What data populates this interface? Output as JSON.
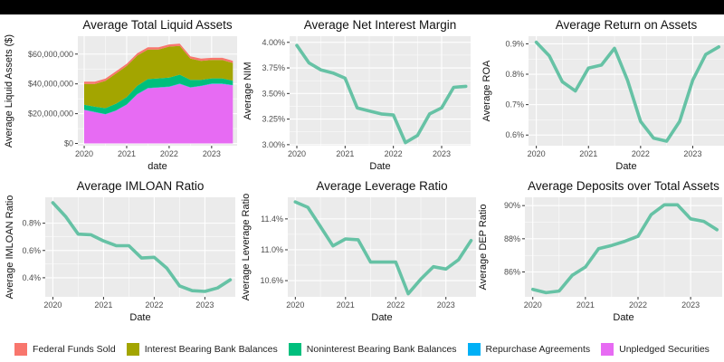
{
  "colors": {
    "panel_bg": "#ebebeb",
    "grid": "#ffffff",
    "line": "#66c2a5"
  },
  "chart_data": [
    {
      "type": "area",
      "title": "Average Total Liquid Assets",
      "xlabel": "date",
      "ylabel": "Average Liquid Assets ($)",
      "xlim": [
        2019.85,
        2023.6
      ],
      "ylim": [
        -1500000,
        72000000
      ],
      "x_ticks": [
        2020,
        2021,
        2022,
        2023
      ],
      "x_tick_labels": [
        "2020",
        "2021",
        "2022",
        "2023"
      ],
      "y_ticks": [
        0,
        20000000,
        40000000,
        60000000
      ],
      "y_tick_labels": [
        "$0",
        "$20,000,000",
        "$40,000,000",
        "$60,000,000"
      ],
      "x": [
        2020,
        2020.25,
        2020.5,
        2020.75,
        2021,
        2021.25,
        2021.5,
        2021.75,
        2022,
        2022.25,
        2022.5,
        2022.75,
        2023,
        2023.25,
        2023.5
      ],
      "series": [
        {
          "name": "Unpledged Securities",
          "color": "#e76bf3",
          "values": [
            22500000,
            21000000,
            19500000,
            22000000,
            26000000,
            33000000,
            37000000,
            37500000,
            38000000,
            40000000,
            37500000,
            38500000,
            40000000,
            40000000,
            39000000
          ]
        },
        {
          "name": "Repurchase Agreements",
          "color": "#00b0f6",
          "values": [
            200000,
            200000,
            200000,
            200000,
            200000,
            200000,
            200000,
            200000,
            200000,
            200000,
            200000,
            200000,
            200000,
            200000,
            200000
          ]
        },
        {
          "name": "Noninterest Bearing Bank Balances",
          "color": "#00bf7d",
          "values": [
            3300000,
            3500000,
            4000000,
            4500000,
            5000000,
            5500000,
            6000000,
            6000000,
            6000000,
            6000000,
            5000000,
            4000000,
            3500000,
            3500000,
            3000000
          ]
        },
        {
          "name": "Interest Bearing Bank Balances",
          "color": "#a3a500",
          "values": [
            14000000,
            15300000,
            18300000,
            20300000,
            20800000,
            20300000,
            19800000,
            19300000,
            20800000,
            19300000,
            14300000,
            12800000,
            12300000,
            12300000,
            11800000
          ]
        },
        {
          "name": "Federal Funds Sold",
          "color": "#f8766d",
          "values": [
            1500000,
            1500000,
            1500000,
            1500000,
            1500000,
            1500000,
            1500000,
            1500000,
            1500000,
            1500000,
            1500000,
            1500000,
            1500000,
            1500000,
            1500000
          ]
        }
      ]
    },
    {
      "type": "line",
      "title": "Average Net Interest Margin",
      "xlabel": "Date",
      "ylabel": "Average NIM",
      "xlim": [
        2019.85,
        2023.6
      ],
      "ylim": [
        2.99,
        4.06
      ],
      "x_ticks": [
        2020,
        2021,
        2022,
        2023
      ],
      "x_tick_labels": [
        "2020",
        "2021",
        "2022",
        "2023"
      ],
      "y_ticks": [
        3.0,
        3.25,
        3.5,
        3.75,
        4.0
      ],
      "y_tick_labels": [
        "3.00%",
        "3.25%",
        "3.50%",
        "3.75%",
        "4.00%"
      ],
      "x": [
        2020,
        2020.25,
        2020.5,
        2020.75,
        2021,
        2021.25,
        2021.5,
        2021.75,
        2022,
        2022.25,
        2022.5,
        2022.75,
        2023,
        2023.25,
        2023.5
      ],
      "values": [
        3.97,
        3.8,
        3.73,
        3.7,
        3.65,
        3.36,
        3.33,
        3.3,
        3.29,
        3.02,
        3.09,
        3.3,
        3.36,
        3.56,
        3.57
      ]
    },
    {
      "type": "line",
      "title": "Average Return on Assets",
      "xlabel": "Date",
      "ylabel": "Average ROA",
      "xlim": [
        2019.85,
        2023.6
      ],
      "ylim": [
        0.565,
        0.925
      ],
      "x_ticks": [
        2020,
        2021,
        2022,
        2023
      ],
      "x_tick_labels": [
        "2020",
        "2021",
        "2022",
        "2023"
      ],
      "y_ticks": [
        0.6,
        0.7,
        0.8,
        0.9
      ],
      "y_tick_labels": [
        "0.6%",
        "0.7%",
        "0.8%",
        "0.9%"
      ],
      "x": [
        2020,
        2020.25,
        2020.5,
        2020.75,
        2021,
        2021.25,
        2021.5,
        2021.75,
        2022,
        2022.25,
        2022.5,
        2022.75,
        2023,
        2023.25,
        2023.5
      ],
      "values": [
        0.905,
        0.86,
        0.775,
        0.745,
        0.82,
        0.83,
        0.885,
        0.78,
        0.645,
        0.59,
        0.58,
        0.645,
        0.78,
        0.865,
        0.89
      ]
    },
    {
      "type": "line",
      "title": "Average IMLOAN Ratio",
      "xlabel": "Date",
      "ylabel": "Average IMLOAN Ratio",
      "xlim": [
        2019.85,
        2023.6
      ],
      "ylim": [
        0.26,
        0.99
      ],
      "x_ticks": [
        2020,
        2021,
        2022,
        2023
      ],
      "x_tick_labels": [
        "2020",
        "2021",
        "2022",
        "2023"
      ],
      "y_ticks": [
        0.4,
        0.6,
        0.8
      ],
      "y_tick_labels": [
        "0.4%",
        "0.6%",
        "0.8%"
      ],
      "x": [
        2020,
        2020.25,
        2020.5,
        2020.75,
        2021,
        2021.25,
        2021.5,
        2021.75,
        2022,
        2022.25,
        2022.5,
        2022.75,
        2023,
        2023.25,
        2023.5
      ],
      "values": [
        0.95,
        0.85,
        0.72,
        0.715,
        0.67,
        0.635,
        0.635,
        0.545,
        0.55,
        0.47,
        0.34,
        0.305,
        0.3,
        0.325,
        0.385
      ]
    },
    {
      "type": "line",
      "title": "Average Leverage Ratio",
      "xlabel": "Date",
      "ylabel": "Average Leverage Ratio",
      "xlim": [
        2019.85,
        2023.6
      ],
      "ylim": [
        10.39,
        11.68
      ],
      "x_ticks": [
        2020,
        2021,
        2022,
        2023
      ],
      "x_tick_labels": [
        "2020",
        "2021",
        "2022",
        "2023"
      ],
      "y_ticks": [
        10.6,
        11.0,
        11.4
      ],
      "y_tick_labels": [
        "10.6%",
        "11.0%",
        "11.4%"
      ],
      "x": [
        2020,
        2020.25,
        2020.5,
        2020.75,
        2021,
        2021.25,
        2021.5,
        2021.75,
        2022,
        2022.25,
        2022.5,
        2022.75,
        2023,
        2023.25,
        2023.5
      ],
      "values": [
        11.62,
        11.55,
        11.3,
        11.05,
        11.14,
        11.13,
        10.84,
        10.84,
        10.84,
        10.43,
        10.62,
        10.78,
        10.75,
        10.87,
        11.12
      ]
    },
    {
      "type": "line",
      "title": "Average Deposits over Total Assets",
      "xlabel": "Date",
      "ylabel": "Average DEP Ratio",
      "xlim": [
        2019.85,
        2023.6
      ],
      "ylim": [
        84.5,
        90.5
      ],
      "x_ticks": [
        2020,
        2021,
        2022,
        2023
      ],
      "x_tick_labels": [
        "2020",
        "2021",
        "2022",
        "2023"
      ],
      "y_ticks": [
        86,
        88,
        90
      ],
      "y_tick_labels": [
        "86%",
        "88%",
        "90%"
      ],
      "x": [
        2020,
        2020.25,
        2020.5,
        2020.75,
        2021,
        2021.25,
        2021.5,
        2021.75,
        2022,
        2022.25,
        2022.5,
        2022.75,
        2023,
        2023.25,
        2023.5
      ],
      "values": [
        84.95,
        84.75,
        84.85,
        85.8,
        86.3,
        87.4,
        87.6,
        87.85,
        88.15,
        89.45,
        90.05,
        90.05,
        89.2,
        89.05,
        88.55
      ]
    }
  ],
  "legend": [
    {
      "label": "Federal Funds Sold",
      "color": "#f8766d"
    },
    {
      "label": "Interest Bearing Bank Balances",
      "color": "#a3a500"
    },
    {
      "label": "Noninterest Bearing Bank Balances",
      "color": "#00bf7d"
    },
    {
      "label": "Repurchase Agreements",
      "color": "#00b0f6"
    },
    {
      "label": "Unpledged Securities",
      "color": "#e76bf3"
    }
  ]
}
